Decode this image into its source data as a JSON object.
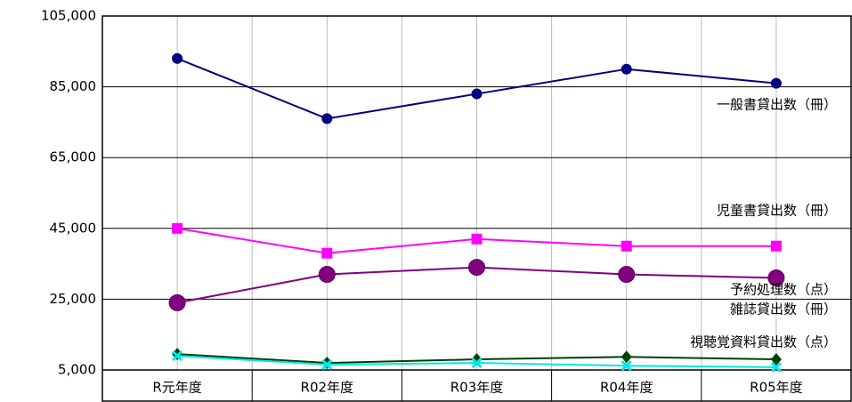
{
  "chart_data": {
    "type": "line",
    "categories": [
      "R元年度",
      "R02年度",
      "R03年度",
      "R04年度",
      "R05年度"
    ],
    "series": [
      {
        "name": "一般書貸出数（冊）",
        "color": "#000080",
        "marker": "circle",
        "values": [
          93000,
          76000,
          83000,
          90000,
          86000
        ]
      },
      {
        "name": "児童書貸出数（冊）",
        "color": "#ff00ff",
        "marker": "square",
        "values": [
          45000,
          38000,
          42000,
          40000,
          40000
        ]
      },
      {
        "name": "予約処理数（点）",
        "color": "#800080",
        "marker": "big-circle",
        "values": [
          24000,
          32000,
          34000,
          32000,
          31000
        ]
      },
      {
        "name": "雑誌貸出数（冊）",
        "color": "#004000",
        "marker": "diamond",
        "values": [
          9500,
          7000,
          8000,
          8700,
          8000
        ]
      },
      {
        "name": "視聴覚資料貸出数（点）",
        "color": "#00e8e8",
        "marker": "x",
        "values": [
          9000,
          6500,
          7000,
          6200,
          5800
        ]
      }
    ],
    "ylim": [
      5000,
      105000
    ],
    "yticks": [
      {
        "value": 5000,
        "label": "5,000"
      },
      {
        "value": 25000,
        "label": "25,000"
      },
      {
        "value": 45000,
        "label": "45,000"
      },
      {
        "value": 65000,
        "label": "65,000"
      },
      {
        "value": 85000,
        "label": "85,000"
      },
      {
        "value": 105000,
        "label": "105,000"
      }
    ],
    "grid": true
  }
}
